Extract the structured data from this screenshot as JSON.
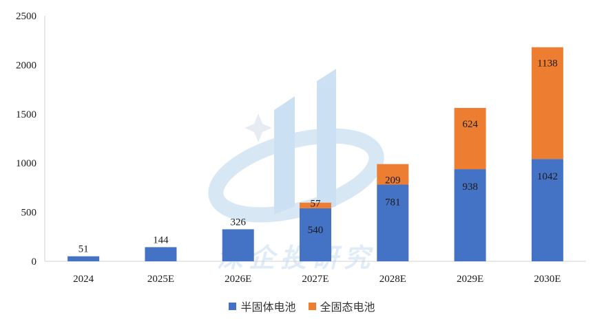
{
  "chart_data": {
    "type": "bar",
    "stacked": true,
    "categories": [
      "2024",
      "2025E",
      "2026E",
      "2027E",
      "2028E",
      "2029E",
      "2030E"
    ],
    "series": [
      {
        "name": "半固体电池",
        "values": [
          51,
          144,
          326,
          540,
          781,
          938,
          1042
        ],
        "color": "#4472C4"
      },
      {
        "name": "全固态电池",
        "values": [
          0,
          0,
          0,
          57,
          209,
          624,
          1138
        ],
        "color": "#ED7D31"
      }
    ],
    "ylim": [
      0,
      2500
    ],
    "yticks": [
      "0",
      "500",
      "1000",
      "1500",
      "2000",
      "2500"
    ],
    "title": "",
    "xlabel": "",
    "ylabel": "",
    "legend_position": "bottom",
    "grid": false,
    "watermark": "深企投研究"
  }
}
